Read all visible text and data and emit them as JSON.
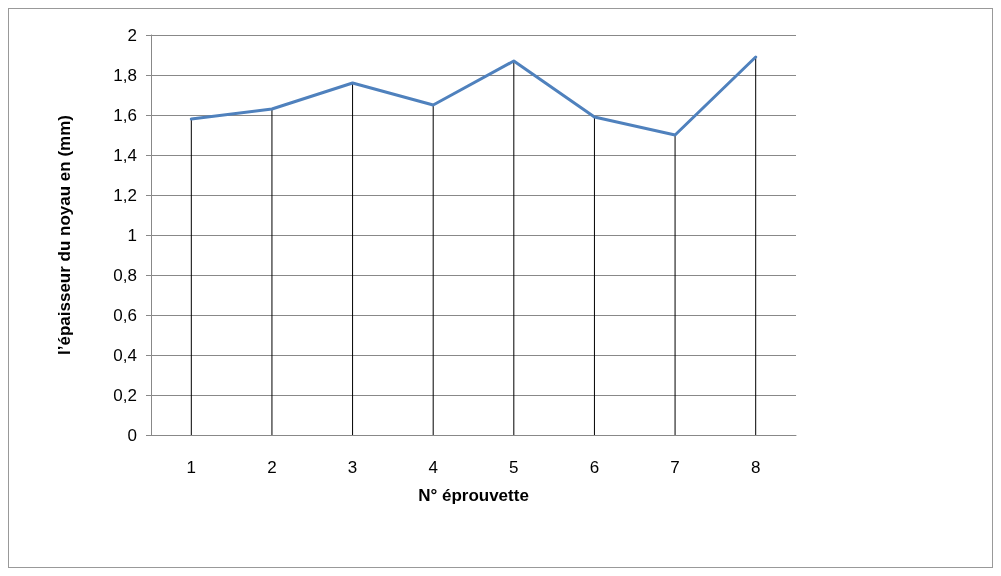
{
  "chart_data": {
    "type": "line",
    "xlabel": "N° éprouvette",
    "ylabel": "l’épaisseur du noyau en (mm)",
    "categories": [
      "1",
      "2",
      "3",
      "4",
      "5",
      "6",
      "7",
      "8"
    ],
    "series": [
      {
        "type": "bar",
        "color": "#000000",
        "values": [
          1.58,
          1.63,
          1.76,
          1.65,
          1.87,
          1.59,
          1.5,
          1.89
        ]
      },
      {
        "color": "#4f81bd",
        "values": [
          1.58,
          1.63,
          1.76,
          1.65,
          1.87,
          1.59,
          1.5,
          1.89
        ]
      }
    ],
    "ylim": [
      0,
      2
    ],
    "yticks": [
      0,
      {
        "value": 0.2,
        "label": "0,2"
      },
      {
        "value": 0.4,
        "label": "0,4"
      },
      {
        "value": 0.6,
        "label": "0,6"
      },
      {
        "value": 0.8,
        "label": "0,8"
      },
      1,
      {
        "value": 1.2,
        "label": "1,2"
      },
      {
        "value": 1.4,
        "label": "1,4"
      },
      {
        "value": 1.6,
        "label": "1,6"
      },
      {
        "value": 1.8,
        "label": "1,8"
      },
      2
    ],
    "grid": "y",
    "marker": "none"
  }
}
